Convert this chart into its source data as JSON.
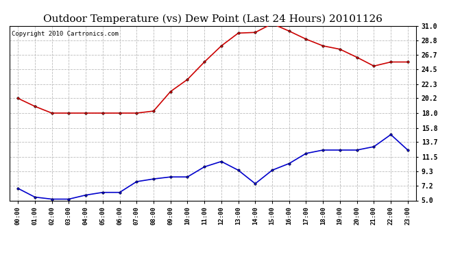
{
  "title": "Outdoor Temperature (vs) Dew Point (Last 24 Hours) 20101126",
  "copyright": "Copyright 2010 Cartronics.com",
  "hours": [
    "00:00",
    "01:00",
    "02:00",
    "03:00",
    "04:00",
    "05:00",
    "06:00",
    "07:00",
    "08:00",
    "09:00",
    "10:00",
    "11:00",
    "12:00",
    "13:00",
    "14:00",
    "15:00",
    "16:00",
    "17:00",
    "18:00",
    "19:00",
    "20:00",
    "21:00",
    "22:00",
    "23:00"
  ],
  "temp": [
    20.2,
    19.0,
    18.0,
    18.0,
    18.0,
    18.0,
    18.0,
    18.0,
    18.3,
    21.2,
    23.0,
    25.6,
    28.0,
    29.9,
    30.0,
    31.3,
    30.2,
    29.0,
    28.0,
    27.5,
    26.3,
    25.0,
    25.6,
    25.6
  ],
  "dew": [
    6.8,
    5.5,
    5.2,
    5.2,
    5.8,
    6.2,
    6.2,
    7.8,
    8.2,
    8.5,
    8.5,
    10.0,
    10.8,
    9.5,
    7.5,
    9.5,
    10.5,
    12.0,
    12.5,
    12.5,
    12.5,
    13.0,
    14.8,
    12.5
  ],
  "temp_color": "#cc0000",
  "dew_color": "#0000cc",
  "bg_color": "#ffffff",
  "plot_bg": "#ffffff",
  "grid_color": "#bbbbbb",
  "ylim": [
    5.0,
    31.0
  ],
  "yticks": [
    5.0,
    7.2,
    9.3,
    11.5,
    13.7,
    15.8,
    18.0,
    20.2,
    22.3,
    24.5,
    26.7,
    28.8,
    31.0
  ],
  "title_fontsize": 11,
  "copyright_fontsize": 6.5,
  "marker": "o",
  "marker_size": 2.5,
  "linewidth": 1.2
}
